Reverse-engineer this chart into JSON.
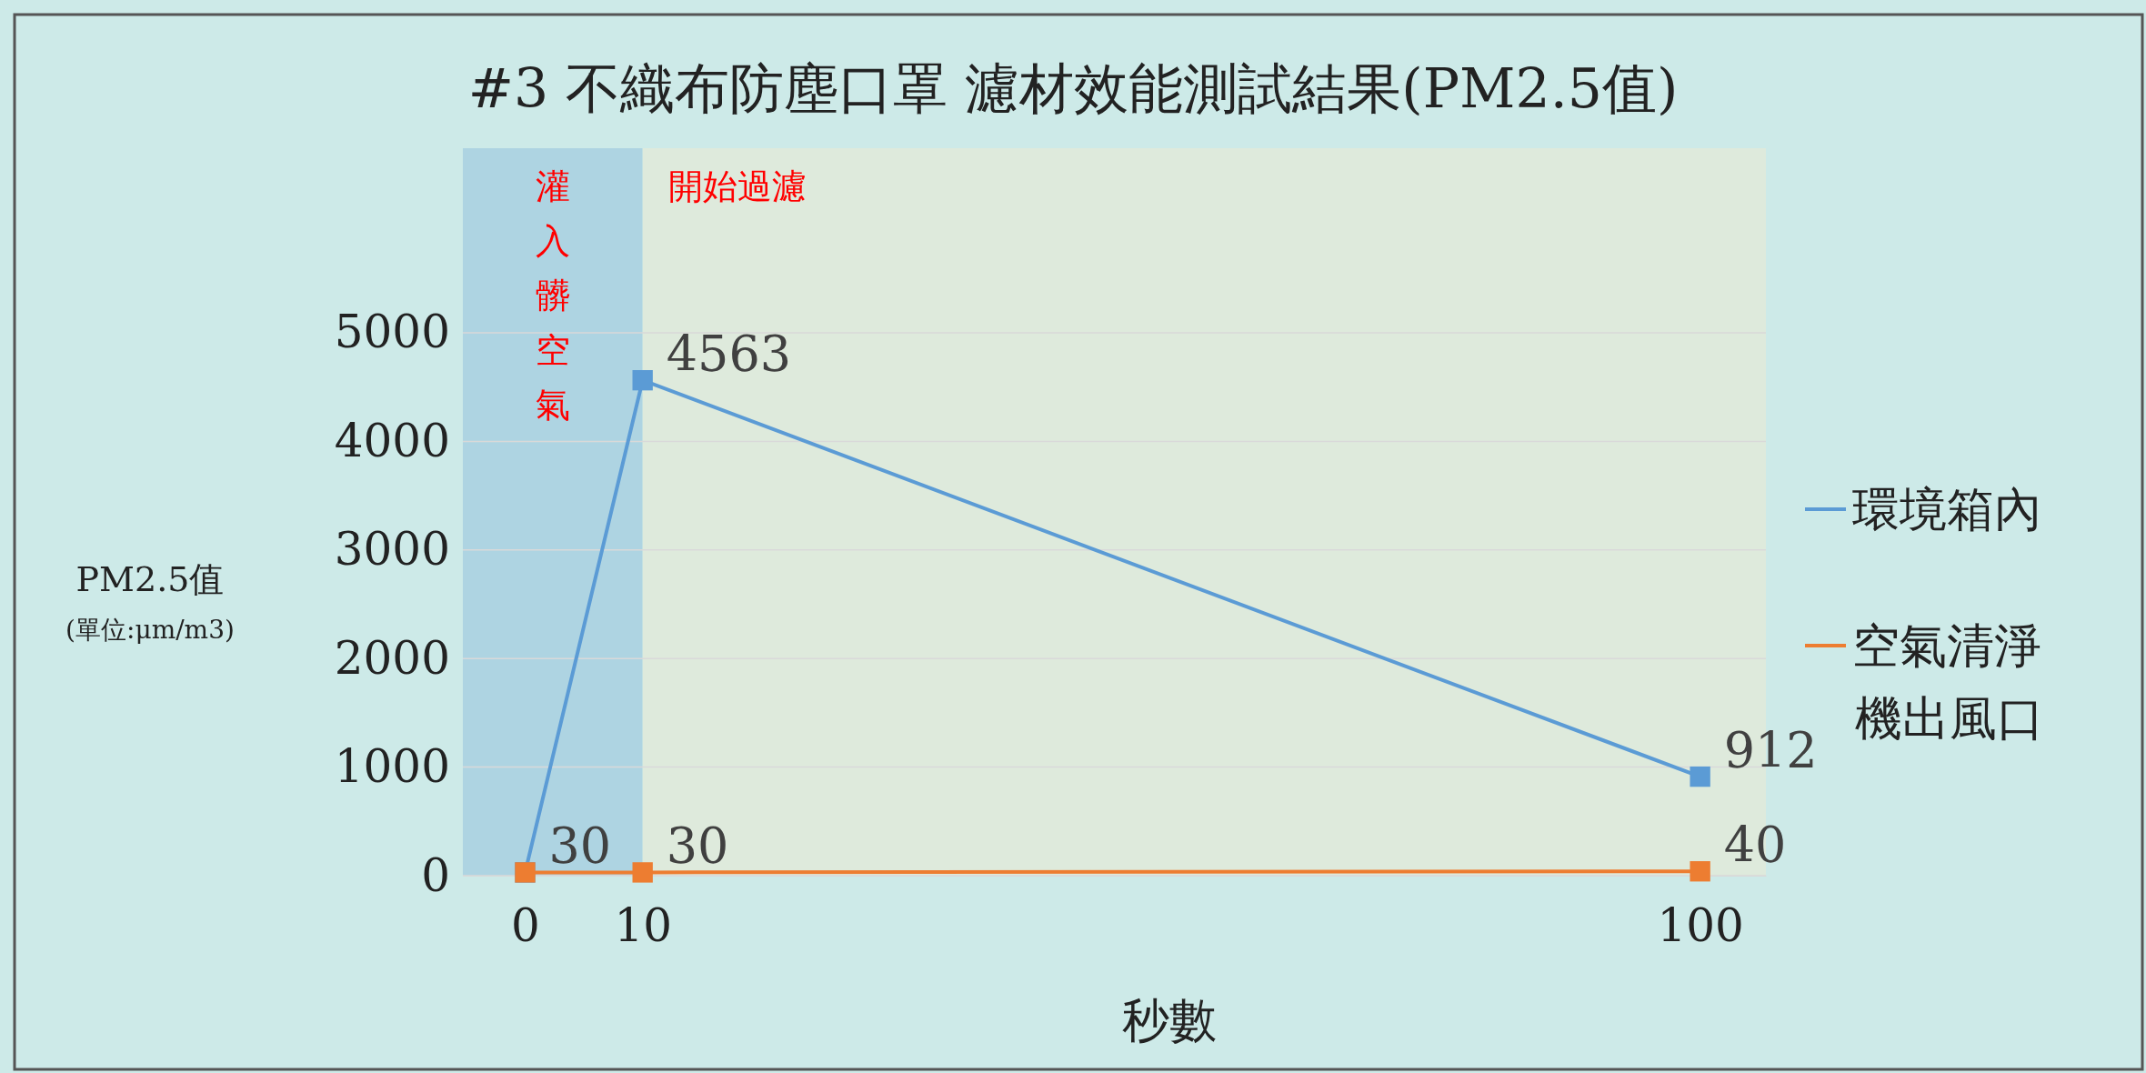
{
  "chart_data": {
    "type": "line",
    "title": "#3 不織布防塵口罩 濾材效能測試結果(PM2.5值)",
    "xlabel": "秒數",
    "ylabel": "PM2.5值\n(單位:μm/m3)",
    "x": [
      0,
      10,
      100
    ],
    "xlim": [
      -5.3,
      105.6
    ],
    "xticks": [
      0,
      10,
      100
    ],
    "ylim": [
      0,
      6700
    ],
    "yticks": [
      0,
      1000,
      2000,
      3000,
      4000,
      5000
    ],
    "grid": "y",
    "marker": "square",
    "legend": "right",
    "series": [
      {
        "name": "環境箱內",
        "color": "#5b9bd5",
        "values": [
          30,
          4563,
          912
        ],
        "value_labels": [
          "30",
          "4563",
          "912"
        ]
      },
      {
        "name": "空氣清淨機出風口",
        "color": "#ed7d31",
        "values": [
          30,
          30,
          40
        ],
        "value_labels": [
          null,
          "30",
          "40"
        ]
      }
    ],
    "bands": [
      {
        "axis": "x",
        "from": -5.3,
        "to": 10,
        "label": "灌入髒空氣",
        "color": "#aed4e2"
      },
      {
        "axis": "x",
        "from": 10,
        "to": 105.6,
        "label": "開始過濾",
        "color": "#deeadc"
      }
    ]
  }
}
